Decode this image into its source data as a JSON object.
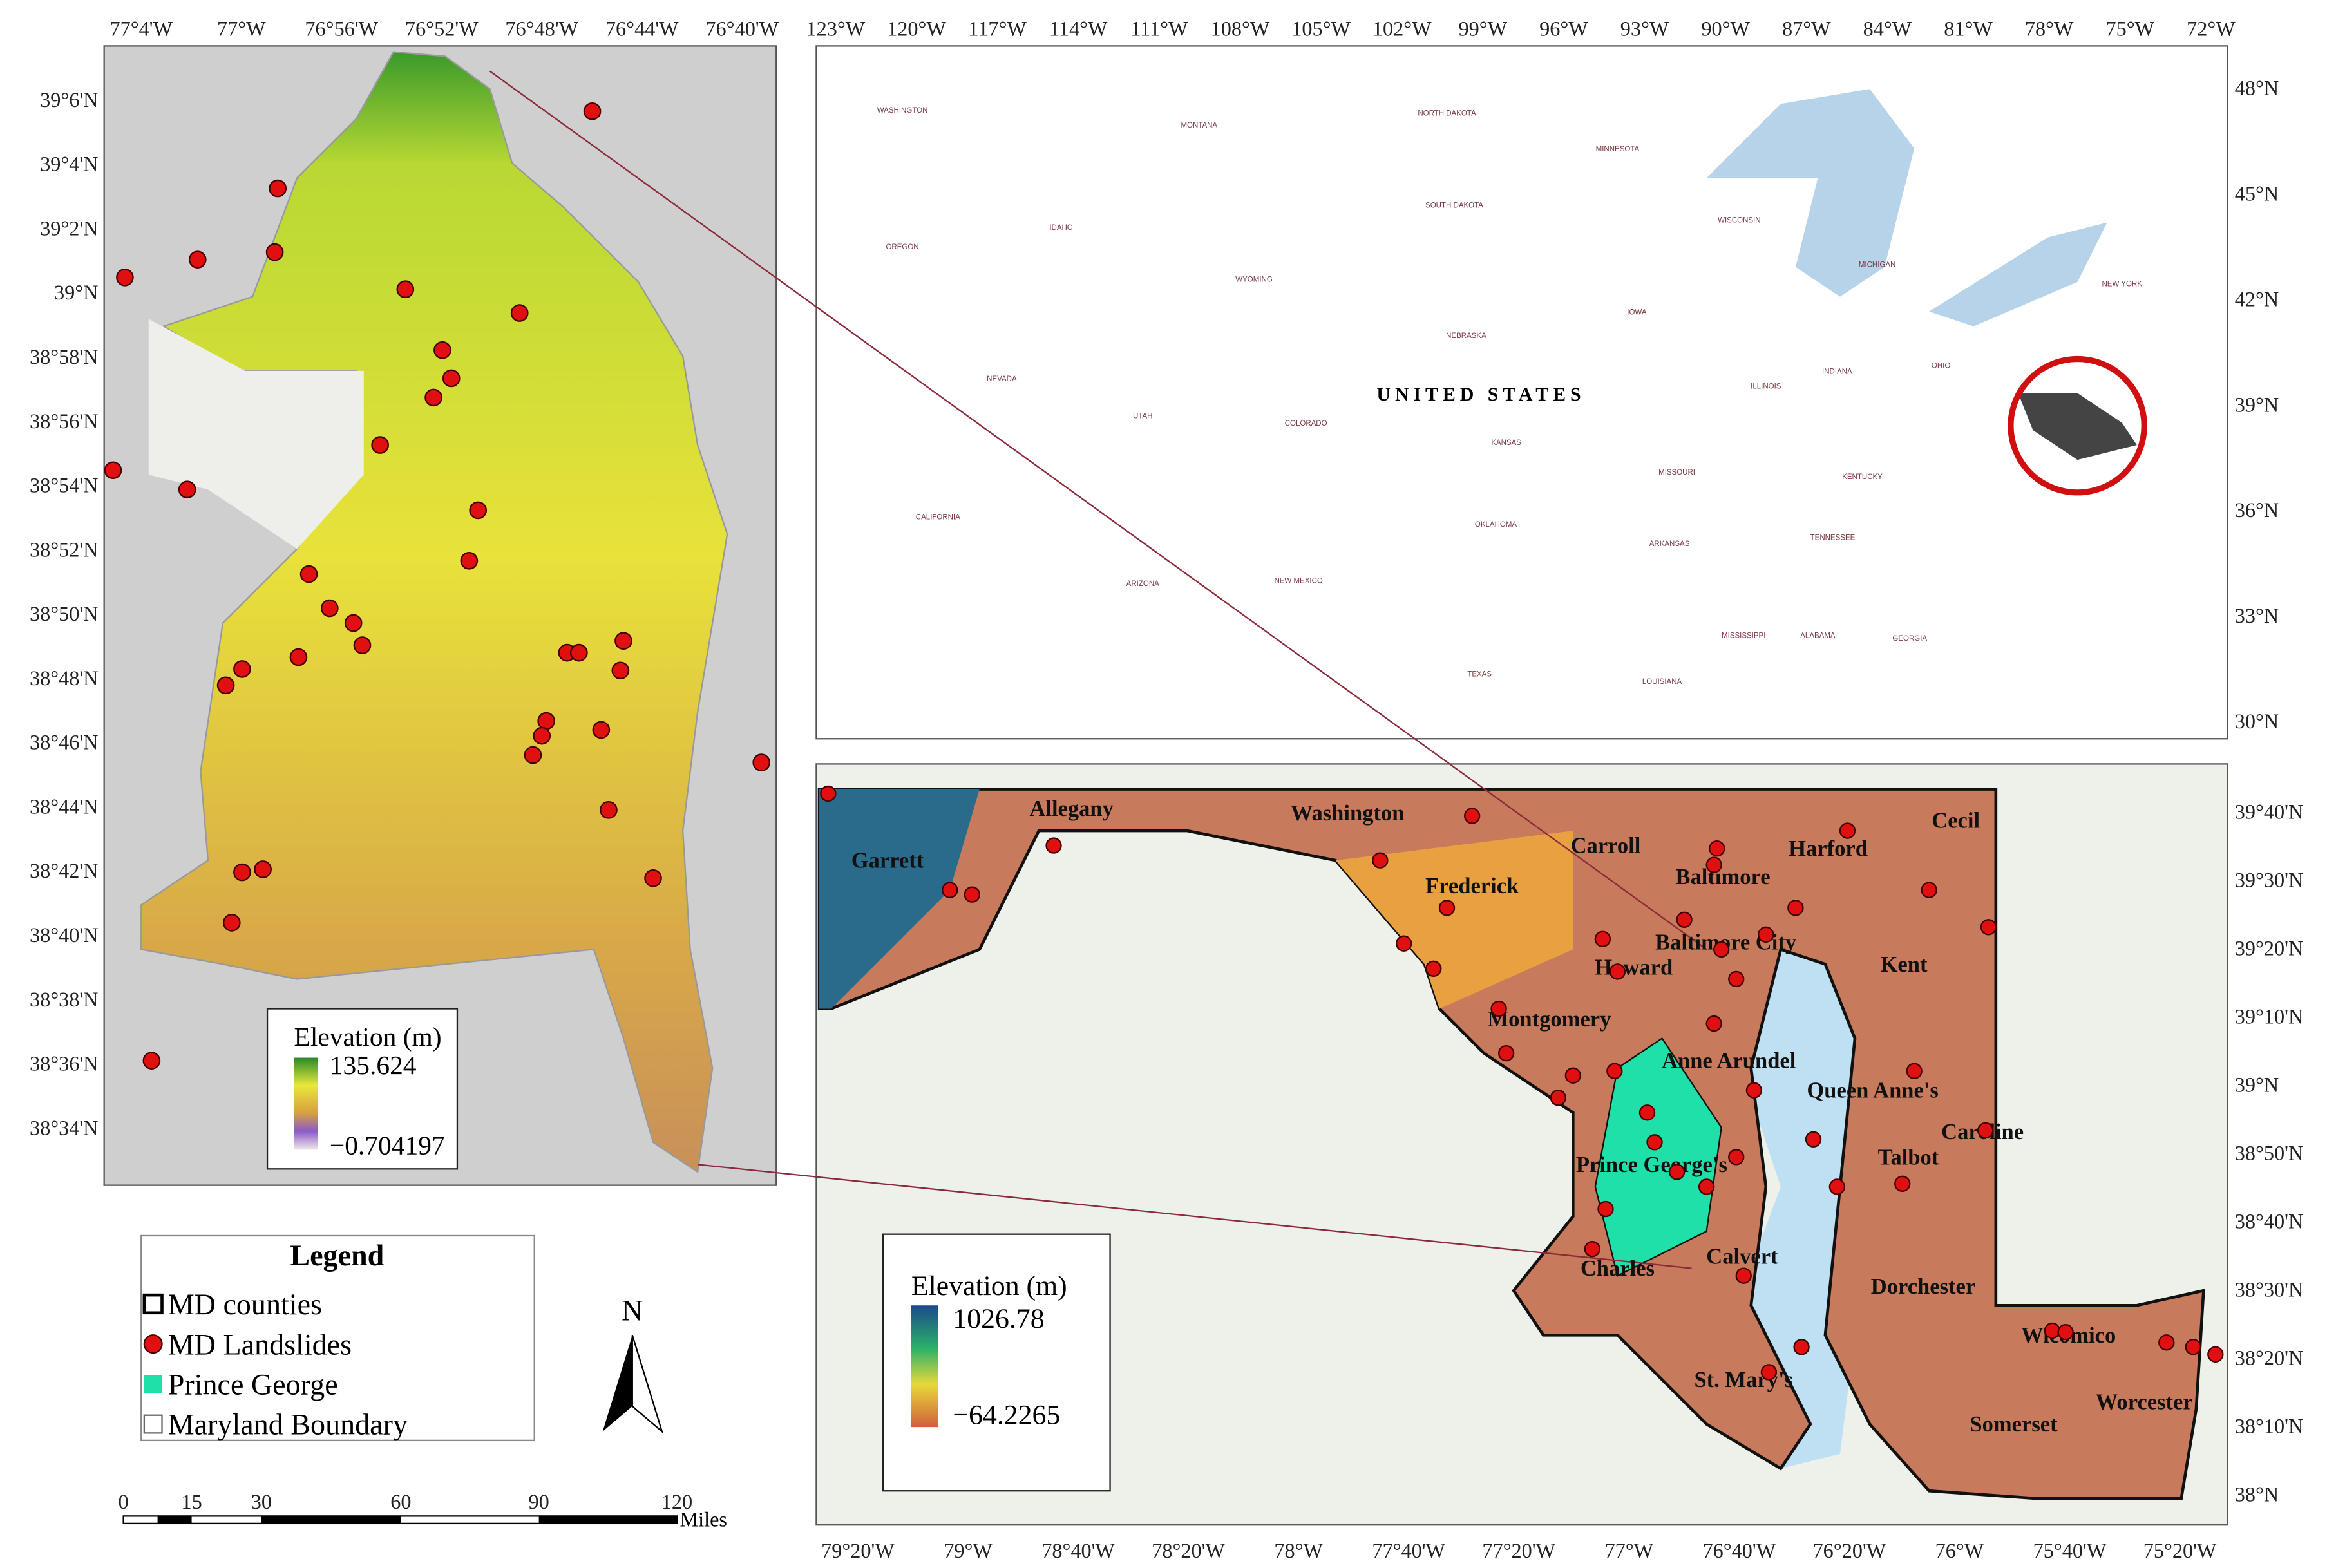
{
  "left_map": {
    "lon_ticks": [
      "77°4'W",
      "77°W",
      "76°56'W",
      "76°52'W",
      "76°48'W",
      "76°44'W",
      "76°40'W"
    ],
    "lat_ticks": [
      "39°6'N",
      "39°4'N",
      "39°2'N",
      "39°N",
      "38°58'N",
      "38°56'N",
      "38°54'N",
      "38°52'N",
      "38°50'N",
      "38°48'N",
      "38°46'N",
      "38°44'N",
      "38°42'N",
      "38°40'N",
      "38°38'N",
      "38°36'N",
      "38°34'N"
    ],
    "legend": {
      "title": "Elevation (m)",
      "max": "135.624",
      "min": "−0.704197"
    }
  },
  "us_map": {
    "lon_ticks": [
      "123°W",
      "120°W",
      "117°W",
      "114°W",
      "111°W",
      "108°W",
      "105°W",
      "102°W",
      "99°W",
      "96°W",
      "93°W",
      "90°W",
      "87°W",
      "84°W",
      "81°W",
      "78°W",
      "75°W",
      "72°W"
    ],
    "lat_ticks": [
      "48°N",
      "45°N",
      "42°N",
      "39°N",
      "36°N",
      "33°N",
      "30°N"
    ],
    "country": "UNITED STATES",
    "states": [
      "WASHINGTON",
      "MONTANA",
      "NORTH DAKOTA",
      "MINNESOTA",
      "OREGON",
      "IDAHO",
      "WYOMING",
      "SOUTH DAKOTA",
      "WISCONSIN",
      "MICHIGAN",
      "NEVADA",
      "UTAH",
      "COLORADO",
      "NEBRASKA",
      "IOWA",
      "ILLINOIS",
      "INDIANA",
      "OHIO",
      "CALIFORNIA",
      "ARIZONA",
      "NEW MEXICO",
      "KANSAS",
      "MISSOURI",
      "KENTUCKY",
      "OKLAHOMA",
      "ARKANSAS",
      "TENNESSEE",
      "TEXAS",
      "LOUISIANA",
      "MISSISSIPPI",
      "ALABAMA",
      "GEORGIA",
      "NEW YORK"
    ]
  },
  "md_map": {
    "lon_ticks": [
      "79°20'W",
      "79°W",
      "78°40'W",
      "78°20'W",
      "78°W",
      "77°40'W",
      "77°20'W",
      "77°W",
      "76°40'W",
      "76°20'W",
      "76°W",
      "75°40'W",
      "75°20'W"
    ],
    "lat_ticks": [
      "39°40'N",
      "39°30'N",
      "39°20'N",
      "39°10'N",
      "39°N",
      "38°50'N",
      "38°40'N",
      "38°30'N",
      "38°20'N",
      "38°10'N",
      "38°N"
    ],
    "counties": [
      "Garrett",
      "Allegany",
      "Washington",
      "Frederick",
      "Carroll",
      "Baltimore",
      "Harford",
      "Cecil",
      "Baltimore City",
      "Howard",
      "Montgomery",
      "Anne Arundel",
      "Kent",
      "Queen Anne's",
      "Caroline",
      "Talbot",
      "Prince George's",
      "Calvert",
      "Charles",
      "Dorchester",
      "Wicomico",
      "St. Mary's",
      "Somerset",
      "Worcester"
    ],
    "legend": {
      "title": "Elevation (m)",
      "max": "1026.78",
      "min": "−64.2265"
    }
  },
  "legend": {
    "title": "Legend",
    "items": [
      "MD counties",
      "MD Landslides",
      "Prince George",
      "Maryland Boundary"
    ]
  },
  "north_arrow": "N",
  "scale_bar": {
    "ticks": [
      "0",
      "15",
      "30",
      "60",
      "90",
      "120"
    ],
    "unit": "Miles"
  }
}
